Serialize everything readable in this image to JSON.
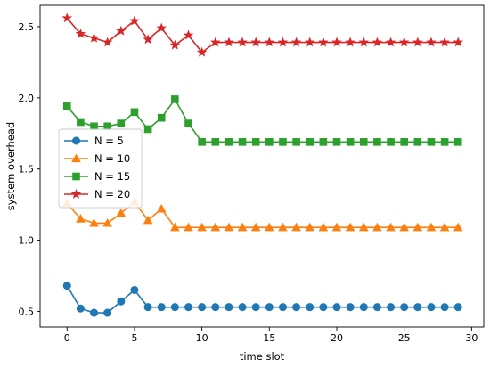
{
  "chart_data": {
    "type": "line",
    "title": "",
    "xlabel": "time slot",
    "ylabel": "system overhead",
    "xlim": [
      -2.0,
      30.9
    ],
    "ylim": [
      0.39,
      2.65
    ],
    "xticks": [
      "0",
      "5",
      "10",
      "15",
      "20",
      "25",
      "30"
    ],
    "yticks": [
      "0.5",
      "1.0",
      "1.5",
      "2.0",
      "2.5"
    ],
    "grid": false,
    "legend_position": "center-left",
    "x": [
      0,
      1,
      2,
      3,
      4,
      5,
      6,
      7,
      8,
      9,
      10,
      11,
      12,
      13,
      14,
      15,
      16,
      17,
      18,
      19,
      20,
      21,
      22,
      23,
      24,
      25,
      26,
      27,
      28,
      29
    ],
    "series": [
      {
        "name": "N = 5",
        "color": "#1f77b4",
        "marker": "circle",
        "values": [
          0.68,
          0.52,
          0.49,
          0.49,
          0.57,
          0.65,
          0.53,
          0.53,
          0.53,
          0.53,
          0.53,
          0.53,
          0.53,
          0.53,
          0.53,
          0.53,
          0.53,
          0.53,
          0.53,
          0.53,
          0.53,
          0.53,
          0.53,
          0.53,
          0.53,
          0.53,
          0.53,
          0.53,
          0.53,
          0.53
        ]
      },
      {
        "name": "N = 10",
        "color": "#ff7f0e",
        "marker": "triangle",
        "values": [
          1.26,
          1.15,
          1.12,
          1.12,
          1.19,
          1.27,
          1.14,
          1.22,
          1.09,
          1.09,
          1.09,
          1.09,
          1.09,
          1.09,
          1.09,
          1.09,
          1.09,
          1.09,
          1.09,
          1.09,
          1.09,
          1.09,
          1.09,
          1.09,
          1.09,
          1.09,
          1.09,
          1.09,
          1.09,
          1.09
        ]
      },
      {
        "name": "N = 15",
        "color": "#2ca02c",
        "marker": "square",
        "values": [
          1.94,
          1.83,
          1.8,
          1.8,
          1.82,
          1.9,
          1.78,
          1.86,
          1.99,
          1.82,
          1.69,
          1.69,
          1.69,
          1.69,
          1.69,
          1.69,
          1.69,
          1.69,
          1.69,
          1.69,
          1.69,
          1.69,
          1.69,
          1.69,
          1.69,
          1.69,
          1.69,
          1.69,
          1.69,
          1.69
        ]
      },
      {
        "name": "N = 20",
        "color": "#d62728",
        "marker": "star",
        "values": [
          2.56,
          2.45,
          2.42,
          2.39,
          2.47,
          2.54,
          2.41,
          2.49,
          2.37,
          2.44,
          2.32,
          2.39,
          2.39,
          2.39,
          2.39,
          2.39,
          2.39,
          2.39,
          2.39,
          2.39,
          2.39,
          2.39,
          2.39,
          2.39,
          2.39,
          2.39,
          2.39,
          2.39,
          2.39,
          2.39
        ]
      }
    ]
  }
}
